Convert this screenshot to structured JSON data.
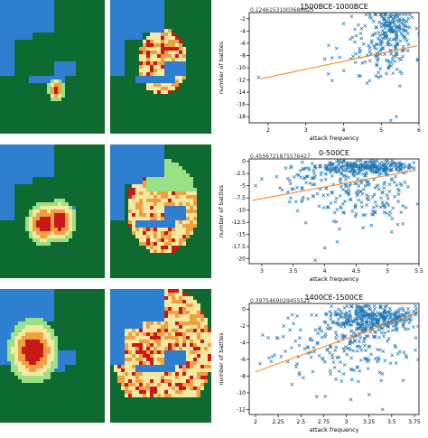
{
  "chart_data": [
    {
      "type": "scatter",
      "title": "1500BCE-1000BCE",
      "corner_text": "0.12461531003686625",
      "xlabel": "attack frequency",
      "ylabel": "number of battles",
      "xlim": [
        1.5,
        6.0
      ],
      "ylim": [
        -19.0,
        -1.0
      ],
      "xticks": [
        2,
        3,
        4,
        5,
        6
      ],
      "yticks": [
        -2,
        -4,
        -6,
        -8,
        -10,
        -12,
        -14,
        -16,
        -18
      ],
      "marker": "x",
      "marker_color": "#1f77b4",
      "fit_color": "#ff7f0e",
      "fit_line": {
        "x": [
          1.8,
          5.95
        ],
        "y": [
          -11.8,
          -6.4
        ]
      },
      "clusters": [
        {
          "cx": 5.2,
          "cy": -5.0,
          "sx": 0.35,
          "sy": 3.8,
          "n": 170
        },
        {
          "cx": 5.35,
          "cy": -3.2,
          "sx": 0.2,
          "sy": 0.8,
          "n": 60
        },
        {
          "cx": 4.6,
          "cy": -7.0,
          "sx": 0.5,
          "sy": 2.5,
          "n": 40
        }
      ],
      "points": [
        {
          "x": 1.75,
          "y": -11.6
        },
        {
          "x": 3.7,
          "y": -12.1
        },
        {
          "x": 3.9,
          "y": -8.3
        },
        {
          "x": 4.3,
          "y": -5.8
        },
        {
          "x": 5.25,
          "y": -18.6
        },
        {
          "x": 5.4,
          "y": -18.0
        },
        {
          "x": 3.6,
          "y": -11.0
        },
        {
          "x": 4.0,
          "y": -2.8
        }
      ],
      "seed": 11
    },
    {
      "type": "scatter",
      "title": "0-500CE",
      "corner_text": "0.4556721875576427",
      "xlabel": "attack frequency",
      "ylabel": "number of battles",
      "xlim": [
        2.8,
        5.5
      ],
      "ylim": [
        -21.0,
        0.5
      ],
      "xticks": [
        3.0,
        3.5,
        4.0,
        4.5,
        5.0,
        5.5
      ],
      "yticks": [
        0.0,
        -2.5,
        -5.0,
        -7.5,
        -10.0,
        -12.5,
        -15.0,
        -17.5,
        -20.0
      ],
      "marker": "x",
      "marker_color": "#1f77b4",
      "fit_color": "#ff7f0e",
      "fit_line": {
        "x": [
          2.85,
          5.45
        ],
        "y": [
          -8.0,
          -1.8
        ]
      },
      "clusters": [
        {
          "cx": 4.6,
          "cy": -1.2,
          "sx": 0.45,
          "sy": 0.7,
          "n": 250
        },
        {
          "cx": 4.35,
          "cy": -5.5,
          "sx": 0.35,
          "sy": 3.5,
          "n": 140
        },
        {
          "cx": 4.9,
          "cy": -7.5,
          "sx": 0.25,
          "sy": 3.5,
          "n": 60
        },
        {
          "cx": 3.6,
          "cy": -4.5,
          "sx": 0.25,
          "sy": 2.5,
          "n": 30
        }
      ],
      "points": [
        {
          "x": 2.9,
          "y": -5.0
        },
        {
          "x": 3.0,
          "y": -3.6
        },
        {
          "x": 3.85,
          "y": -20.3
        },
        {
          "x": 4.0,
          "y": -17.8
        },
        {
          "x": 4.2,
          "y": -16.5
        },
        {
          "x": 3.7,
          "y": -12.6
        }
      ],
      "seed": 23
    },
    {
      "type": "scatter",
      "title": "1400CE-1500CE",
      "corner_text": "0.3975469029455521",
      "xlabel": "attack frequency",
      "ylabel": "number of battles",
      "xlim": [
        1.93,
        3.8
      ],
      "ylim": [
        -12.6,
        0.7
      ],
      "xticks": [
        2.0,
        2.25,
        2.5,
        2.75,
        3.0,
        3.25,
        3.5,
        3.75
      ],
      "yticks": [
        0,
        -2,
        -4,
        -6,
        -8,
        -10,
        -12
      ],
      "marker": "x",
      "marker_color": "#1f77b4",
      "fit_color": "#ff7f0e",
      "fit_line": {
        "x": [
          2.0,
          3.75
        ],
        "y": [
          -7.5,
          -0.5
        ]
      },
      "clusters": [
        {
          "cx": 3.3,
          "cy": -1.0,
          "sx": 0.22,
          "sy": 0.8,
          "n": 320
        },
        {
          "cx": 3.1,
          "cy": -4.0,
          "sx": 0.3,
          "sy": 2.2,
          "n": 180
        },
        {
          "cx": 2.6,
          "cy": -4.0,
          "sx": 0.3,
          "sy": 2.0,
          "n": 40
        }
      ],
      "points": [
        {
          "x": 2.05,
          "y": -6.5
        },
        {
          "x": 2.15,
          "y": -5.8
        },
        {
          "x": 3.05,
          "y": -10.8
        },
        {
          "x": 3.25,
          "y": -10.2
        },
        {
          "x": 3.4,
          "y": -12.0
        },
        {
          "x": 2.4,
          "y": -9.0
        }
      ],
      "seed": 37
    }
  ],
  "maps": {
    "colors": {
      "sea": "#2f7fd0",
      "land": "#0f6a32",
      "heat_high": "#c81818",
      "heat_mid": "#f0a040",
      "heat_low": "#f6e8a0",
      "heat_green": "#9ae084"
    },
    "rows": [
      {
        "single_hot_spots": [
          [
            0.52,
            0.66
          ]
        ],
        "extent": "small"
      },
      {
        "single_hot_spots": [
          [
            0.4,
            0.58
          ],
          [
            0.55,
            0.56
          ]
        ],
        "extent": "medium"
      },
      {
        "single_hot_spots": [
          [
            0.3,
            0.45
          ]
        ],
        "extent": "large"
      }
    ]
  }
}
